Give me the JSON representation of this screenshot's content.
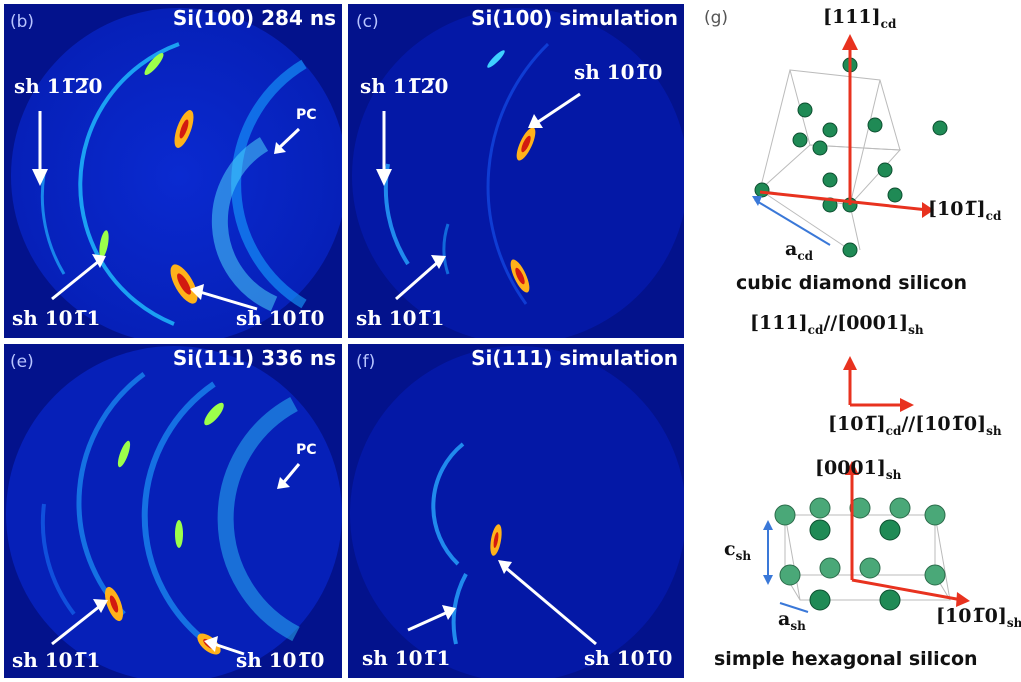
{
  "panels": [
    {
      "id": "b",
      "label": "(b)",
      "title": "Si(100) 284 ns",
      "pc": "PC",
      "ann_top": "sh 11̅2̅0",
      "ann_bl": "sh 101̅1",
      "ann_br": "sh 101̅0"
    },
    {
      "id": "c",
      "label": "(c)",
      "title": "Si(100) simulation",
      "ann_top": "sh 11̅2̅0",
      "ann_tr": "sh 101̅0",
      "ann_bl": "sh 101̅1"
    },
    {
      "id": "e",
      "label": "(e)",
      "title": "Si(111) 336 ns",
      "pc": "PC",
      "ann_bl": "sh 101̅1",
      "ann_br": "sh 101̅0"
    },
    {
      "id": "f",
      "label": "(f)",
      "title": "Si(111) simulation",
      "ann_bl": "sh 101̅1",
      "ann_br": "sh 101̅0"
    }
  ],
  "crystal": {
    "label": "(g)",
    "cd_top": {
      "main": "[111]",
      "sub": "cd"
    },
    "cd_right": {
      "main": "[101̅]",
      "sub": "cd"
    },
    "cd_a": {
      "main": "a",
      "sub": "cd"
    },
    "cd_caption": "cubic diamond silicon",
    "rel1": {
      "a": "[111]",
      "asub": "cd",
      "mid": "//[0001]",
      "bsub": "sh"
    },
    "rel2": {
      "a": "[101̅]",
      "asub": "cd",
      "mid": "//[101̅0]",
      "bsub": "sh"
    },
    "sh_top": {
      "main": "[0001]",
      "sub": "sh"
    },
    "sh_right": {
      "main": "[101̅0]",
      "sub": "sh"
    },
    "sh_c": {
      "main": "c",
      "sub": "sh"
    },
    "sh_a": {
      "main": "a",
      "sub": "sh"
    },
    "sh_caption": "simple hexagonal silicon"
  },
  "colors": {
    "background": "#03128c",
    "arrow": "#ffffff",
    "axis": "#e8321f",
    "atom": "#1f8a55",
    "ring_hot": "#ff3a1a"
  }
}
